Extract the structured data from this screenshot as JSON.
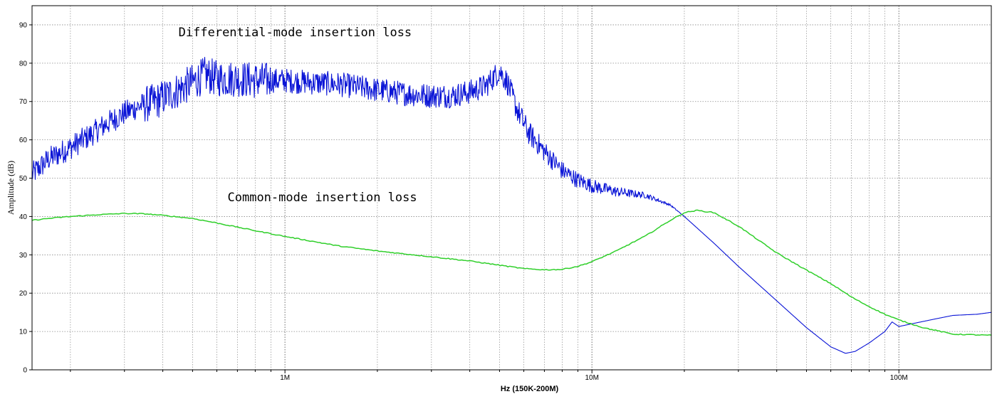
{
  "chart_data": {
    "type": "line",
    "title": "",
    "xlabel": "Hz  (150K-200M)",
    "ylabel": "Amplitude (dB)",
    "x_scale": "log",
    "xlim": [
      150000,
      200000000
    ],
    "ylim": [
      0,
      95
    ],
    "grid": true,
    "x_ticks": [
      {
        "value": 1000000,
        "label": "1M"
      },
      {
        "value": 10000000,
        "label": "10M"
      },
      {
        "value": 100000000,
        "label": "100M"
      }
    ],
    "y_ticks": [
      0,
      10,
      20,
      30,
      40,
      50,
      60,
      70,
      80,
      90
    ],
    "annotations": [
      {
        "text": "Differential-mode insertion loss",
        "x": 450000,
        "y": 87
      },
      {
        "text": "Common-mode insertion loss",
        "x": 650000,
        "y": 44
      }
    ],
    "series": [
      {
        "name": "Differential-mode insertion loss",
        "color": "#0a14d6",
        "x": [
          150000,
          170000,
          200000,
          230000,
          260000,
          300000,
          340000,
          380000,
          400000,
          450000,
          500000,
          550000,
          600000,
          700000,
          800000,
          900000,
          1000000,
          1200000,
          1500000,
          2000000,
          2500000,
          3000000,
          3500000,
          4000000,
          4500000,
          5000000,
          5300000,
          5700000,
          6200000,
          7000000,
          8000000,
          9000000,
          10000000,
          12000000,
          15000000,
          18000000,
          20000000,
          25000000,
          30000000,
          40000000,
          50000000,
          60000000,
          67000000,
          72000000,
          80000000,
          90000000,
          95000000,
          100000000,
          110000000,
          130000000,
          150000000,
          180000000,
          200000000
        ],
        "y": [
          51,
          55,
          58,
          61,
          64,
          67,
          69,
          70,
          71,
          73,
          75,
          77,
          76,
          76,
          75.5,
          75.5,
          75.5,
          75,
          74.5,
          73,
          72,
          71.5,
          71.5,
          72.5,
          74,
          78,
          75,
          68,
          62,
          57,
          52,
          49.5,
          48,
          46.5,
          45.5,
          43,
          40,
          33,
          27,
          18,
          11,
          6,
          4.3,
          4.8,
          7,
          10,
          12.5,
          11.3,
          12,
          13.2,
          14.2,
          14.5,
          15
        ]
      },
      {
        "name": "Common-mode insertion loss",
        "color": "#2fcf2a",
        "x": [
          150000,
          170000,
          200000,
          250000,
          300000,
          350000,
          400000,
          500000,
          600000,
          800000,
          1000000,
          1500000,
          2000000,
          3000000,
          4000000,
          5000000,
          6000000,
          7000000,
          8000000,
          9000000,
          10000000,
          12000000,
          15000000,
          18000000,
          20000000,
          22000000,
          25000000,
          30000000,
          40000000,
          50000000,
          60000000,
          70000000,
          80000000,
          90000000,
          100000000,
          120000000,
          150000000,
          200000000
        ],
        "y": [
          39,
          39.5,
          40,
          40.5,
          40.8,
          40.7,
          40.3,
          39.5,
          38.3,
          36.3,
          34.8,
          32.3,
          31,
          29.5,
          28.4,
          27.3,
          26.4,
          26.1,
          26.2,
          27,
          28.2,
          31,
          35,
          39,
          41,
          41.6,
          41,
          37.5,
          30.5,
          26,
          22.5,
          19,
          16.5,
          14.5,
          13,
          11,
          9.3,
          9
        ]
      }
    ]
  }
}
